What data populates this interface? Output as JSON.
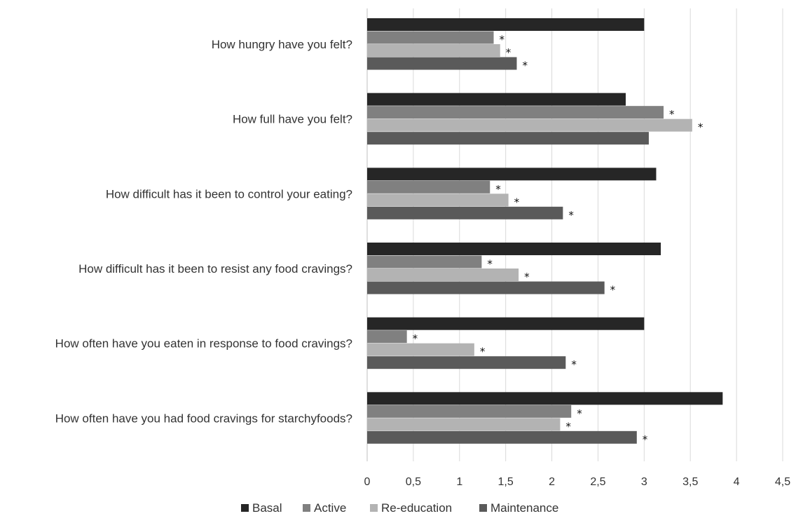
{
  "chart_data": {
    "type": "bar",
    "orientation": "horizontal",
    "categories": [
      "How hungry have you felt?",
      "How full have you felt?",
      "How difficult has it been to control your eating?",
      "How difficult has it been to resist any food cravings?",
      "How often have you eaten in response to food cravings?",
      "How often have you had food cravings for starchyfoods?"
    ],
    "series": [
      {
        "name": "Basal",
        "color": "#262626",
        "values": [
          3.0,
          2.8,
          3.13,
          3.18,
          3.0,
          3.85
        ],
        "significant": [
          false,
          false,
          false,
          false,
          false,
          false
        ]
      },
      {
        "name": "Active",
        "color": "#808080",
        "values": [
          1.37,
          3.21,
          1.33,
          1.24,
          0.43,
          2.21
        ],
        "significant": [
          true,
          true,
          true,
          true,
          true,
          true
        ]
      },
      {
        "name": "Re-education",
        "color": "#b3b3b3",
        "values": [
          1.44,
          3.52,
          1.53,
          1.64,
          1.16,
          2.09
        ],
        "significant": [
          true,
          true,
          true,
          true,
          true,
          true
        ]
      },
      {
        "name": "Maintenance",
        "color": "#5a5a5a",
        "values": [
          1.62,
          3.05,
          2.12,
          2.57,
          2.15,
          2.92
        ],
        "significant": [
          true,
          false,
          true,
          true,
          true,
          true
        ]
      }
    ],
    "significance_marker": "*",
    "xlim": [
      0,
      4.5
    ],
    "xticks": [
      "0",
      "0,5",
      "1",
      "1,5",
      "2",
      "2,5",
      "3",
      "3,5",
      "4",
      "4,5"
    ],
    "grid": "vertical",
    "legend_position": "bottom"
  }
}
